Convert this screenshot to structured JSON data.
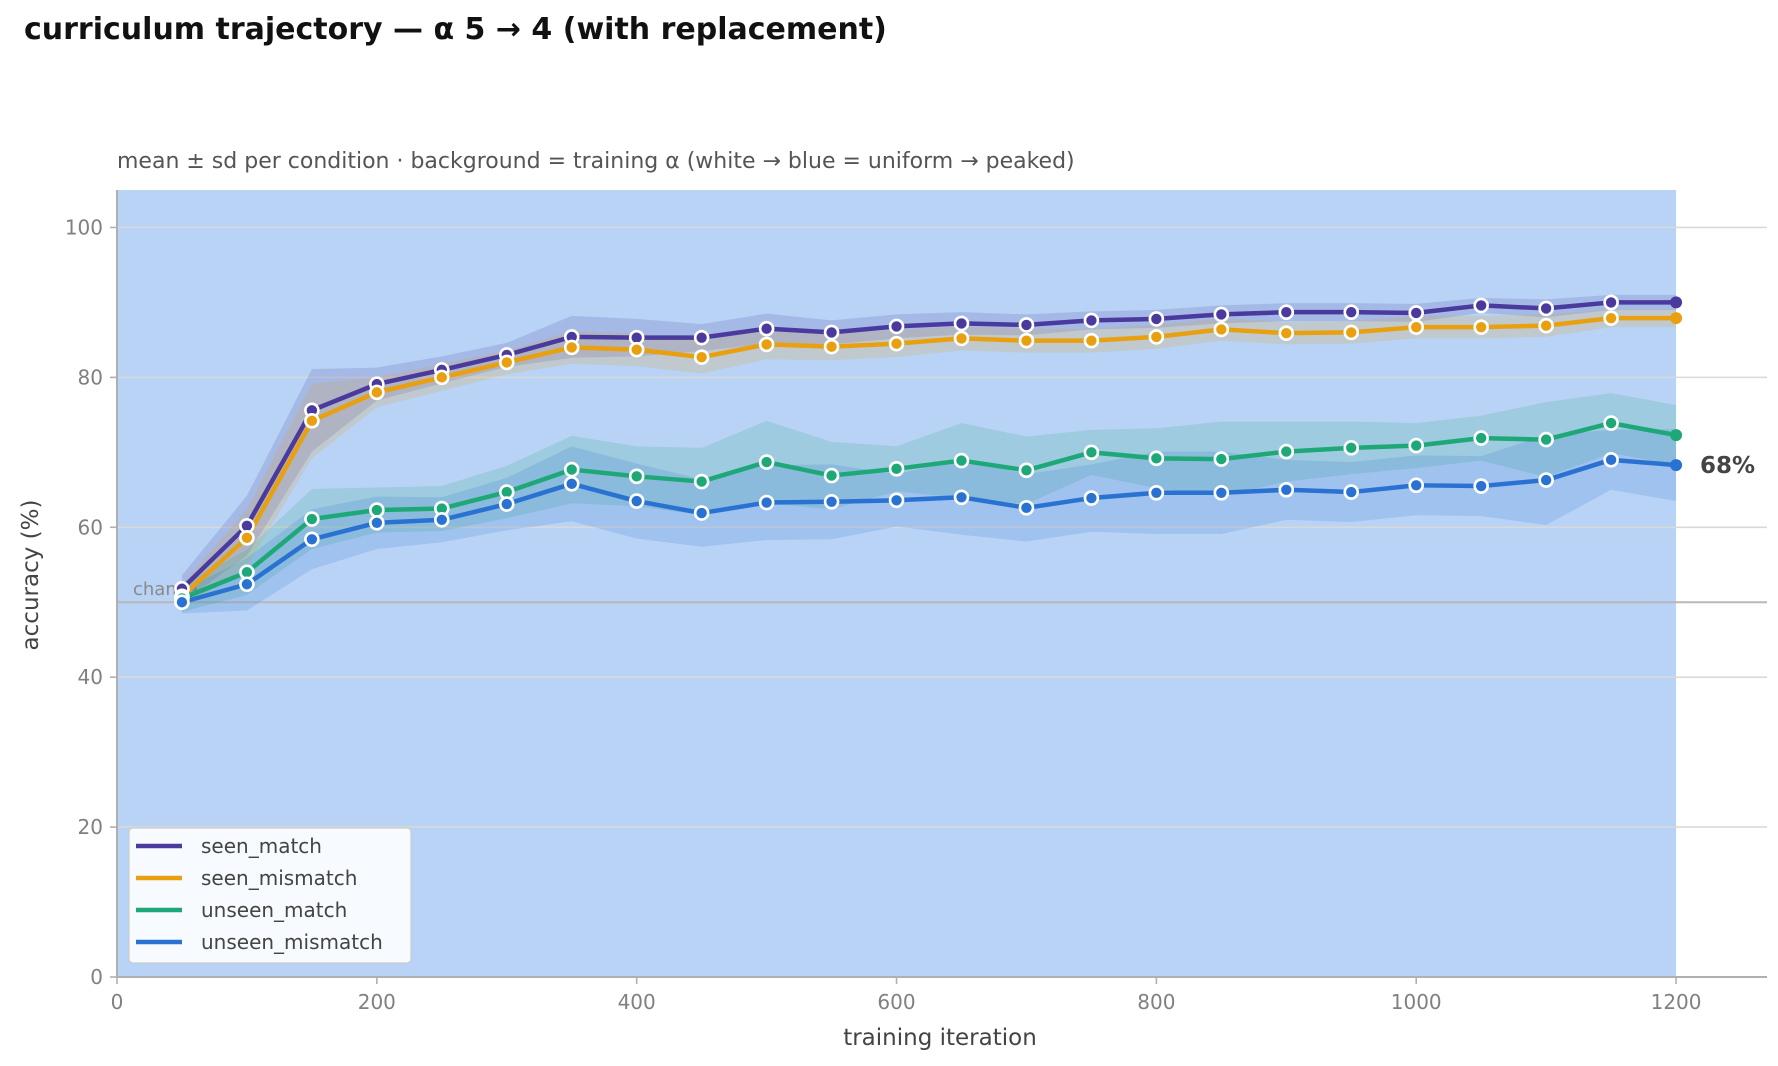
{
  "title": "curriculum trajectory — α 5 → 4 (with replacement)",
  "colors": {
    "background_band": "#b8d3f5",
    "seen_match": "#4a3a9e",
    "seen_mismatch": "#e8a010",
    "unseen_match": "#1ea878",
    "unseen_mismatch": "#2a72d2",
    "grid": "#d9d9d9",
    "chance": "#b8b8b8"
  },
  "chart_data": {
    "type": "line",
    "subtitle": "mean ± sd per condition · background = training α (white → blue = uniform → peaked)",
    "xlabel": "training iteration",
    "ylabel": "accuracy (%)",
    "xlim": [
      0,
      1270
    ],
    "ylim": [
      0,
      105
    ],
    "xticks": [
      0,
      200,
      400,
      600,
      800,
      1000,
      1200
    ],
    "yticks": [
      0,
      20,
      40,
      60,
      80,
      100
    ],
    "grid": "horizontal",
    "legend_position": "lower-left",
    "chance_level": 50,
    "chance_label": "chance",
    "background_band": {
      "x_start": 0,
      "x_end": 1200
    },
    "end_label": {
      "series": "unseen_mismatch",
      "text": "68%"
    },
    "x": [
      50,
      100,
      150,
      200,
      250,
      300,
      350,
      400,
      450,
      500,
      550,
      600,
      650,
      700,
      750,
      800,
      850,
      900,
      950,
      1000,
      1050,
      1100,
      1150,
      1200
    ],
    "series": [
      {
        "name": "seen_match",
        "color": "#4a3a9e",
        "values": [
          51.8,
          60.2,
          75.6,
          79.1,
          81.0,
          83.0,
          85.4,
          85.3,
          85.3,
          86.5,
          86.0,
          86.8,
          87.2,
          87.0,
          87.6,
          87.8,
          88.4,
          88.7,
          88.7,
          88.6,
          89.6,
          89.2,
          90.0,
          90.0
        ],
        "sd": [
          1.8,
          4.0,
          5.5,
          2.2,
          1.8,
          1.6,
          2.8,
          2.5,
          1.8,
          2.0,
          1.6,
          1.6,
          1.5,
          1.4,
          1.2,
          1.2,
          1.2,
          1.2,
          1.2,
          1.2,
          1.0,
          1.2,
          1.0,
          1.0
        ]
      },
      {
        "name": "seen_mismatch",
        "color": "#e8a010",
        "values": [
          50.8,
          58.6,
          74.2,
          78.0,
          80.0,
          82.0,
          84.0,
          83.7,
          82.7,
          84.4,
          84.1,
          84.5,
          85.2,
          84.9,
          84.9,
          85.4,
          86.4,
          85.9,
          86.0,
          86.7,
          86.7,
          86.9,
          87.9,
          87.9
        ],
        "sd": [
          1.6,
          3.8,
          5.0,
          2.0,
          1.8,
          1.6,
          2.2,
          2.2,
          2.2,
          2.0,
          1.8,
          1.8,
          1.6,
          1.6,
          1.6,
          1.6,
          1.5,
          1.5,
          1.5,
          1.5,
          1.5,
          1.5,
          1.2,
          1.2
        ]
      },
      {
        "name": "unseen_match",
        "color": "#1ea878",
        "values": [
          50.5,
          54.0,
          61.1,
          62.3,
          62.5,
          64.7,
          67.7,
          66.8,
          66.1,
          68.7,
          66.9,
          67.8,
          68.9,
          67.6,
          70.0,
          69.2,
          69.1,
          70.1,
          70.6,
          70.9,
          71.9,
          71.7,
          73.9,
          72.3
        ],
        "sd": [
          1.8,
          3.0,
          4.0,
          3.0,
          3.0,
          3.5,
          4.5,
          4.0,
          4.5,
          5.5,
          4.5,
          3.0,
          5.0,
          4.5,
          3.0,
          4.0,
          5.0,
          4.0,
          3.5,
          3.0,
          3.0,
          5.0,
          4.0,
          4.0
        ]
      },
      {
        "name": "unseen_mismatch",
        "color": "#2a72d2",
        "values": [
          50.0,
          52.4,
          58.4,
          60.6,
          61.0,
          63.1,
          65.8,
          63.5,
          61.9,
          63.3,
          63.4,
          63.6,
          64.0,
          62.6,
          63.9,
          64.6,
          64.6,
          65.0,
          64.7,
          65.6,
          65.5,
          66.3,
          69.0,
          68.3
        ],
        "sd": [
          1.5,
          3.5,
          4.0,
          3.5,
          3.0,
          3.5,
          5.0,
          5.0,
          4.5,
          5.0,
          5.0,
          3.5,
          5.0,
          4.5,
          4.5,
          5.5,
          5.5,
          4.0,
          4.0,
          4.0,
          4.0,
          6.0,
          4.0,
          4.8
        ]
      }
    ]
  }
}
